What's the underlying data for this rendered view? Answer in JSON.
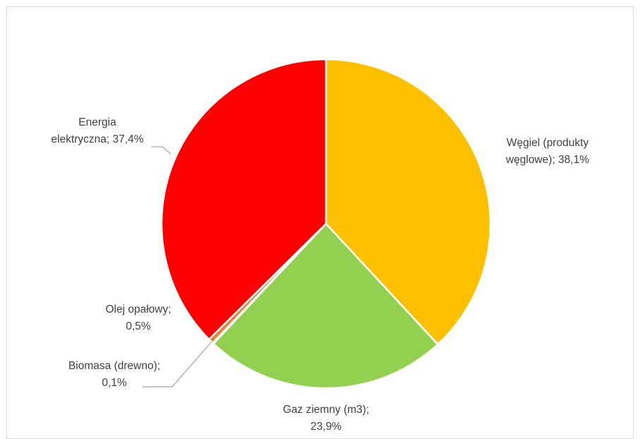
{
  "chart_data": {
    "type": "pie",
    "title": "",
    "slices": [
      {
        "name": "Węgiel (produkty węglowe)",
        "value": 38.1,
        "label_lines": [
          "Węgiel (produkty",
          "węglowe); 38,1%"
        ],
        "color": "#FFC000"
      },
      {
        "name": "Gaz ziemny (m3)",
        "value": 23.9,
        "label_lines": [
          "Gaz ziemny (m3);",
          "23,9%"
        ],
        "color": "#92D050"
      },
      {
        "name": "Biomasa (drewno)",
        "value": 0.1,
        "label_lines": [
          "Biomasa (drewno);",
          "0,1%"
        ],
        "color": "#A5A5A5"
      },
      {
        "name": "Olej opałowy",
        "value": 0.5,
        "label_lines": [
          "Olej opałowy;",
          "0,5%"
        ],
        "color": "#ED7D31"
      },
      {
        "name": "Energia elektryczna",
        "value": 37.4,
        "label_lines": [
          "Energia",
          "elektryczna; 37,4%"
        ],
        "color": "#FF0000"
      }
    ],
    "start_angle": "12 o'clock",
    "direction": "clockwise",
    "legend": "none",
    "label_position": "outside"
  }
}
